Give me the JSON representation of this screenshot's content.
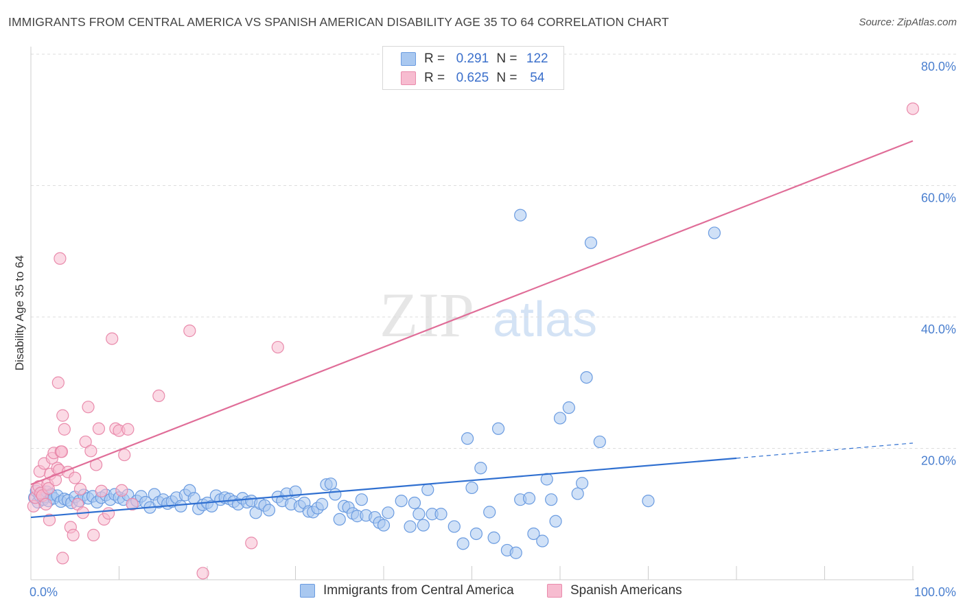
{
  "title": "IMMIGRANTS FROM CENTRAL AMERICA VS SPANISH AMERICAN DISABILITY AGE 35 TO 64 CORRELATION CHART",
  "source": "Source: ZipAtlas.com",
  "watermark": {
    "zip": "ZIP",
    "atlas": "atlas"
  },
  "legend": {
    "r_label": "R =",
    "n_label": "N =",
    "rows": [
      {
        "r": "0.291",
        "n": "122",
        "color": "#a9c8f0",
        "border": "#6a9be0"
      },
      {
        "r": "0.625",
        "n": "54",
        "color": "#f7bcd0",
        "border": "#e98aab"
      }
    ]
  },
  "bottom_legend": [
    {
      "label": "Immigrants from Central America",
      "color": "#a9c8f0",
      "border": "#6a9be0"
    },
    {
      "label": "Spanish Americans",
      "color": "#f7bcd0",
      "border": "#e98aab"
    }
  ],
  "chart_data": {
    "type": "scatter",
    "xlabel": "",
    "ylabel": "Disability Age 35 to 64",
    "xlim": [
      0,
      100
    ],
    "ylim": [
      0,
      80
    ],
    "x_tick_labels": [
      "0.0%",
      "100.0%"
    ],
    "y_ticks": [
      20,
      40,
      60,
      80
    ],
    "y_tick_labels": [
      "20.0%",
      "40.0%",
      "60.0%",
      "80.0%"
    ],
    "grid": "horizontal dashed",
    "series": [
      {
        "name": "Immigrants from Central America",
        "color": "#6a9be0",
        "fill": "#a9c8f0",
        "trend": {
          "x0": 0,
          "y0": 9.5,
          "x1": 80,
          "y1": 18.5,
          "dashed_to_x": 100,
          "dashed_to_y": 20.8,
          "color": "#2f6fd0"
        },
        "points": [
          [
            0.4,
            12.5
          ],
          [
            0.6,
            13.5
          ],
          [
            0.8,
            11.8
          ],
          [
            1.0,
            12.8
          ],
          [
            1.2,
            13.2
          ],
          [
            1.4,
            12.2
          ],
          [
            1.6,
            12.6
          ],
          [
            1.8,
            13.4
          ],
          [
            2.0,
            12.0
          ],
          [
            2.3,
            13.0
          ],
          [
            2.6,
            12.4
          ],
          [
            3.0,
            12.8
          ],
          [
            3.4,
            11.9
          ],
          [
            3.8,
            12.3
          ],
          [
            4.2,
            12.1
          ],
          [
            4.6,
            11.7
          ],
          [
            5.0,
            12.6
          ],
          [
            5.5,
            12.0
          ],
          [
            6.0,
            12.9
          ],
          [
            6.5,
            12.4
          ],
          [
            7.0,
            12.7
          ],
          [
            7.5,
            11.8
          ],
          [
            8.0,
            12.5
          ],
          [
            8.5,
            12.9
          ],
          [
            9.0,
            12.2
          ],
          [
            9.5,
            13.0
          ],
          [
            10.0,
            12.5
          ],
          [
            10.5,
            12.2
          ],
          [
            11.0,
            12.9
          ],
          [
            11.5,
            11.5
          ],
          [
            12.0,
            12.0
          ],
          [
            12.5,
            12.7
          ],
          [
            13.0,
            11.8
          ],
          [
            13.5,
            11.0
          ],
          [
            14.0,
            13.0
          ],
          [
            14.5,
            11.8
          ],
          [
            15.0,
            12.2
          ],
          [
            15.5,
            11.6
          ],
          [
            16.0,
            11.9
          ],
          [
            16.5,
            12.5
          ],
          [
            17.0,
            11.2
          ],
          [
            17.5,
            12.9
          ],
          [
            18.0,
            13.6
          ],
          [
            18.5,
            12.4
          ],
          [
            19.0,
            10.8
          ],
          [
            19.5,
            11.4
          ],
          [
            20.0,
            11.7
          ],
          [
            20.5,
            11.2
          ],
          [
            21.0,
            12.8
          ],
          [
            21.5,
            12.2
          ],
          [
            22.0,
            12.5
          ],
          [
            22.5,
            12.3
          ],
          [
            23.0,
            11.9
          ],
          [
            23.5,
            11.5
          ],
          [
            24.0,
            12.4
          ],
          [
            24.5,
            11.8
          ],
          [
            25.0,
            12.0
          ],
          [
            25.5,
            10.2
          ],
          [
            26.0,
            11.6
          ],
          [
            26.5,
            11.3
          ],
          [
            27.0,
            10.6
          ],
          [
            28.0,
            12.6
          ],
          [
            28.5,
            12.0
          ],
          [
            29.0,
            13.1
          ],
          [
            29.5,
            11.5
          ],
          [
            30.0,
            13.4
          ],
          [
            30.5,
            11.2
          ],
          [
            31.0,
            11.7
          ],
          [
            31.5,
            10.4
          ],
          [
            32.0,
            10.3
          ],
          [
            32.5,
            10.9
          ],
          [
            33.0,
            11.5
          ],
          [
            33.5,
            14.5
          ],
          [
            34.0,
            14.6
          ],
          [
            34.5,
            13.0
          ],
          [
            35.0,
            9.2
          ],
          [
            35.5,
            11.2
          ],
          [
            36.0,
            11.0
          ],
          [
            36.5,
            10.1
          ],
          [
            37.0,
            9.7
          ],
          [
            37.5,
            12.2
          ],
          [
            38.0,
            9.8
          ],
          [
            39.0,
            9.5
          ],
          [
            39.5,
            8.7
          ],
          [
            40.0,
            8.3
          ],
          [
            40.5,
            10.2
          ],
          [
            42.0,
            12.0
          ],
          [
            43.0,
            8.1
          ],
          [
            43.5,
            11.7
          ],
          [
            44.0,
            10.0
          ],
          [
            44.5,
            8.3
          ],
          [
            45.0,
            13.7
          ],
          [
            45.5,
            10.0
          ],
          [
            46.5,
            10.0
          ],
          [
            48.0,
            8.1
          ],
          [
            49.0,
            5.5
          ],
          [
            49.5,
            21.5
          ],
          [
            50.0,
            14.0
          ],
          [
            50.5,
            7.0
          ],
          [
            51.0,
            17.0
          ],
          [
            52.0,
            10.3
          ],
          [
            52.5,
            6.4
          ],
          [
            53.0,
            23.0
          ],
          [
            54.0,
            4.5
          ],
          [
            55.0,
            4.1
          ],
          [
            55.5,
            12.2
          ],
          [
            56.5,
            12.4
          ],
          [
            57.0,
            7.0
          ],
          [
            58.0,
            5.9
          ],
          [
            58.5,
            15.3
          ],
          [
            59.0,
            12.2
          ],
          [
            59.5,
            8.9
          ],
          [
            60.0,
            24.6
          ],
          [
            61.0,
            26.2
          ],
          [
            62.0,
            13.1
          ],
          [
            62.5,
            14.7
          ],
          [
            63.0,
            30.8
          ],
          [
            64.5,
            21.0
          ],
          [
            70.0,
            12.0
          ],
          [
            55.5,
            55.5
          ],
          [
            63.5,
            51.3
          ],
          [
            77.5,
            52.8
          ]
        ]
      },
      {
        "name": "Spanish Americans",
        "color": "#e98aab",
        "fill": "#f7bcd0",
        "trend": {
          "x0": 0,
          "y0": 14.5,
          "x1": 100,
          "y1": 66.8,
          "color": "#e06d98"
        },
        "points": [
          [
            0.3,
            11.2
          ],
          [
            0.5,
            12.5
          ],
          [
            0.7,
            13.8
          ],
          [
            0.9,
            14.2
          ],
          [
            1.0,
            16.5
          ],
          [
            1.1,
            13.2
          ],
          [
            1.3,
            12.8
          ],
          [
            1.5,
            17.7
          ],
          [
            1.7,
            11.5
          ],
          [
            1.9,
            14.5
          ],
          [
            2.0,
            13.9
          ],
          [
            2.2,
            16.1
          ],
          [
            2.4,
            18.5
          ],
          [
            2.6,
            19.3
          ],
          [
            2.8,
            15.2
          ],
          [
            3.0,
            17.0
          ],
          [
            2.1,
            9.1
          ],
          [
            3.2,
            16.7
          ],
          [
            3.4,
            19.5
          ],
          [
            3.6,
            25.0
          ],
          [
            3.1,
            30.0
          ],
          [
            3.3,
            48.9
          ],
          [
            3.5,
            19.5
          ],
          [
            3.8,
            22.9
          ],
          [
            4.2,
            16.4
          ],
          [
            4.5,
            8.0
          ],
          [
            4.8,
            6.8
          ],
          [
            5.0,
            15.5
          ],
          [
            5.3,
            11.5
          ],
          [
            5.6,
            13.8
          ],
          [
            5.9,
            10.2
          ],
          [
            6.2,
            21.0
          ],
          [
            6.5,
            26.3
          ],
          [
            6.8,
            19.6
          ],
          [
            7.1,
            6.8
          ],
          [
            7.4,
            17.5
          ],
          [
            7.7,
            23.0
          ],
          [
            8.0,
            13.5
          ],
          [
            8.3,
            9.2
          ],
          [
            8.8,
            10.1
          ],
          [
            9.2,
            36.7
          ],
          [
            9.6,
            23.0
          ],
          [
            10.0,
            22.7
          ],
          [
            10.3,
            13.6
          ],
          [
            10.6,
            19.0
          ],
          [
            11.0,
            22.9
          ],
          [
            11.5,
            11.5
          ],
          [
            14.5,
            28.0
          ],
          [
            18.0,
            37.9
          ],
          [
            19.5,
            1.0
          ],
          [
            25.0,
            5.6
          ],
          [
            28.0,
            35.4
          ],
          [
            3.6,
            3.3
          ],
          [
            100,
            71.7
          ]
        ]
      }
    ]
  }
}
